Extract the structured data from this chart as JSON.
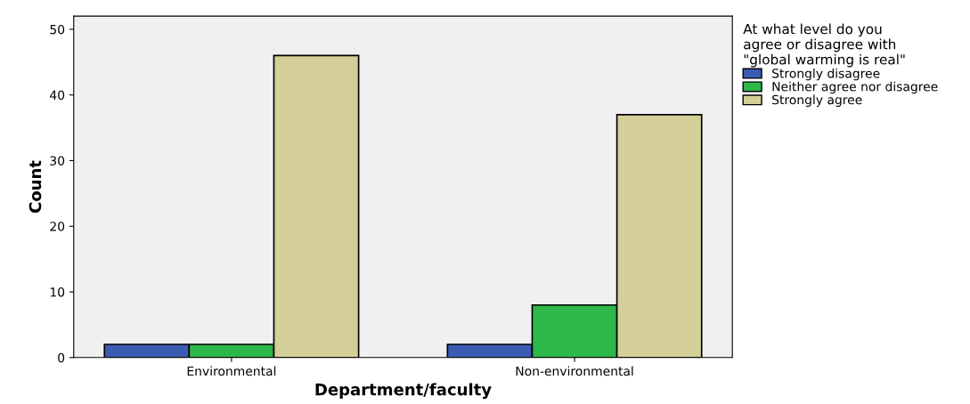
{
  "chart_data": {
    "type": "bar",
    "xlabel": "Department/faculty",
    "ylabel": "Count",
    "legend_title": "At what level do you\nagree or disagree with\n\"global warming is real\"",
    "categories": [
      "Environmental",
      "Non-environmental"
    ],
    "series": [
      {
        "name": "Strongly disagree",
        "color": "#3a5db3",
        "values": [
          2,
          2
        ]
      },
      {
        "name": "Neither agree nor disagree",
        "color": "#2fb84a",
        "values": [
          2,
          8
        ]
      },
      {
        "name": "Strongly agree",
        "color": "#d4cf98",
        "values": [
          46,
          37
        ]
      }
    ],
    "ylim": [
      0,
      52
    ],
    "yticks": [
      0,
      10,
      20,
      30,
      40,
      50
    ],
    "grid": false,
    "legend": "top right"
  }
}
